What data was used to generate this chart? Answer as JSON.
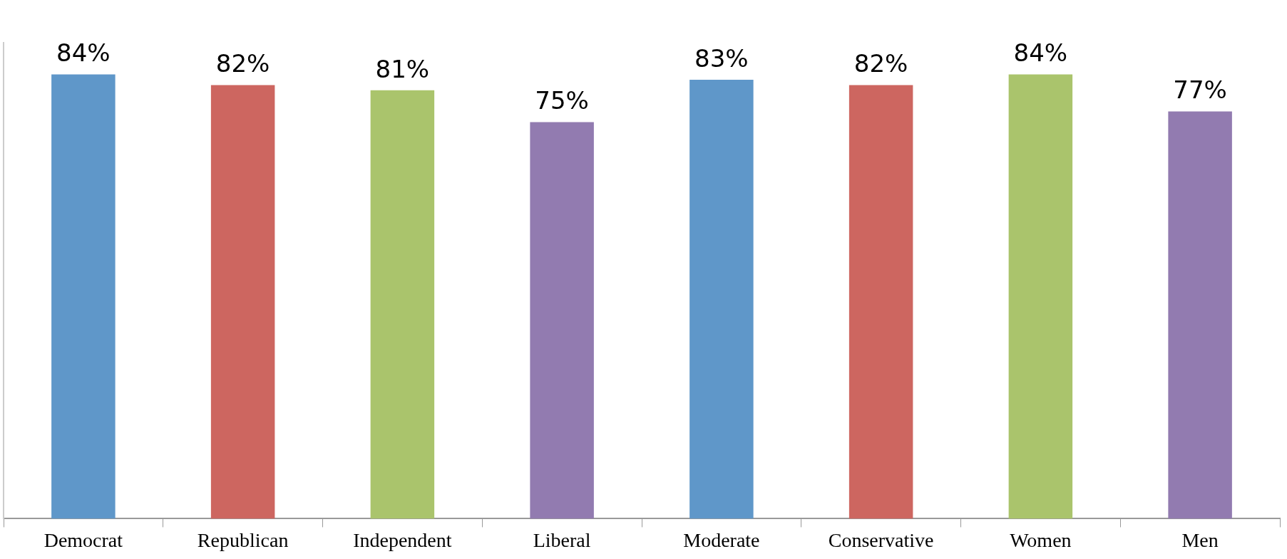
{
  "chart_data": {
    "type": "bar",
    "categories": [
      "Democrat",
      "Republican",
      "Independent",
      "Liberal",
      "Moderate",
      "Conservative",
      "Women",
      "Men"
    ],
    "values": [
      84,
      82,
      81,
      75,
      83,
      82,
      84,
      77
    ],
    "colors": [
      "#5f97c9",
      "#cd6660",
      "#aac46c",
      "#927bb0",
      "#5f97c9",
      "#cd6660",
      "#aac46c",
      "#927bb0"
    ],
    "value_labels": [
      "84%",
      "82%",
      "81%",
      "75%",
      "83%",
      "82%",
      "84%",
      "77%"
    ],
    "tick_labels": "x",
    "grid": false,
    "legend": false
  }
}
